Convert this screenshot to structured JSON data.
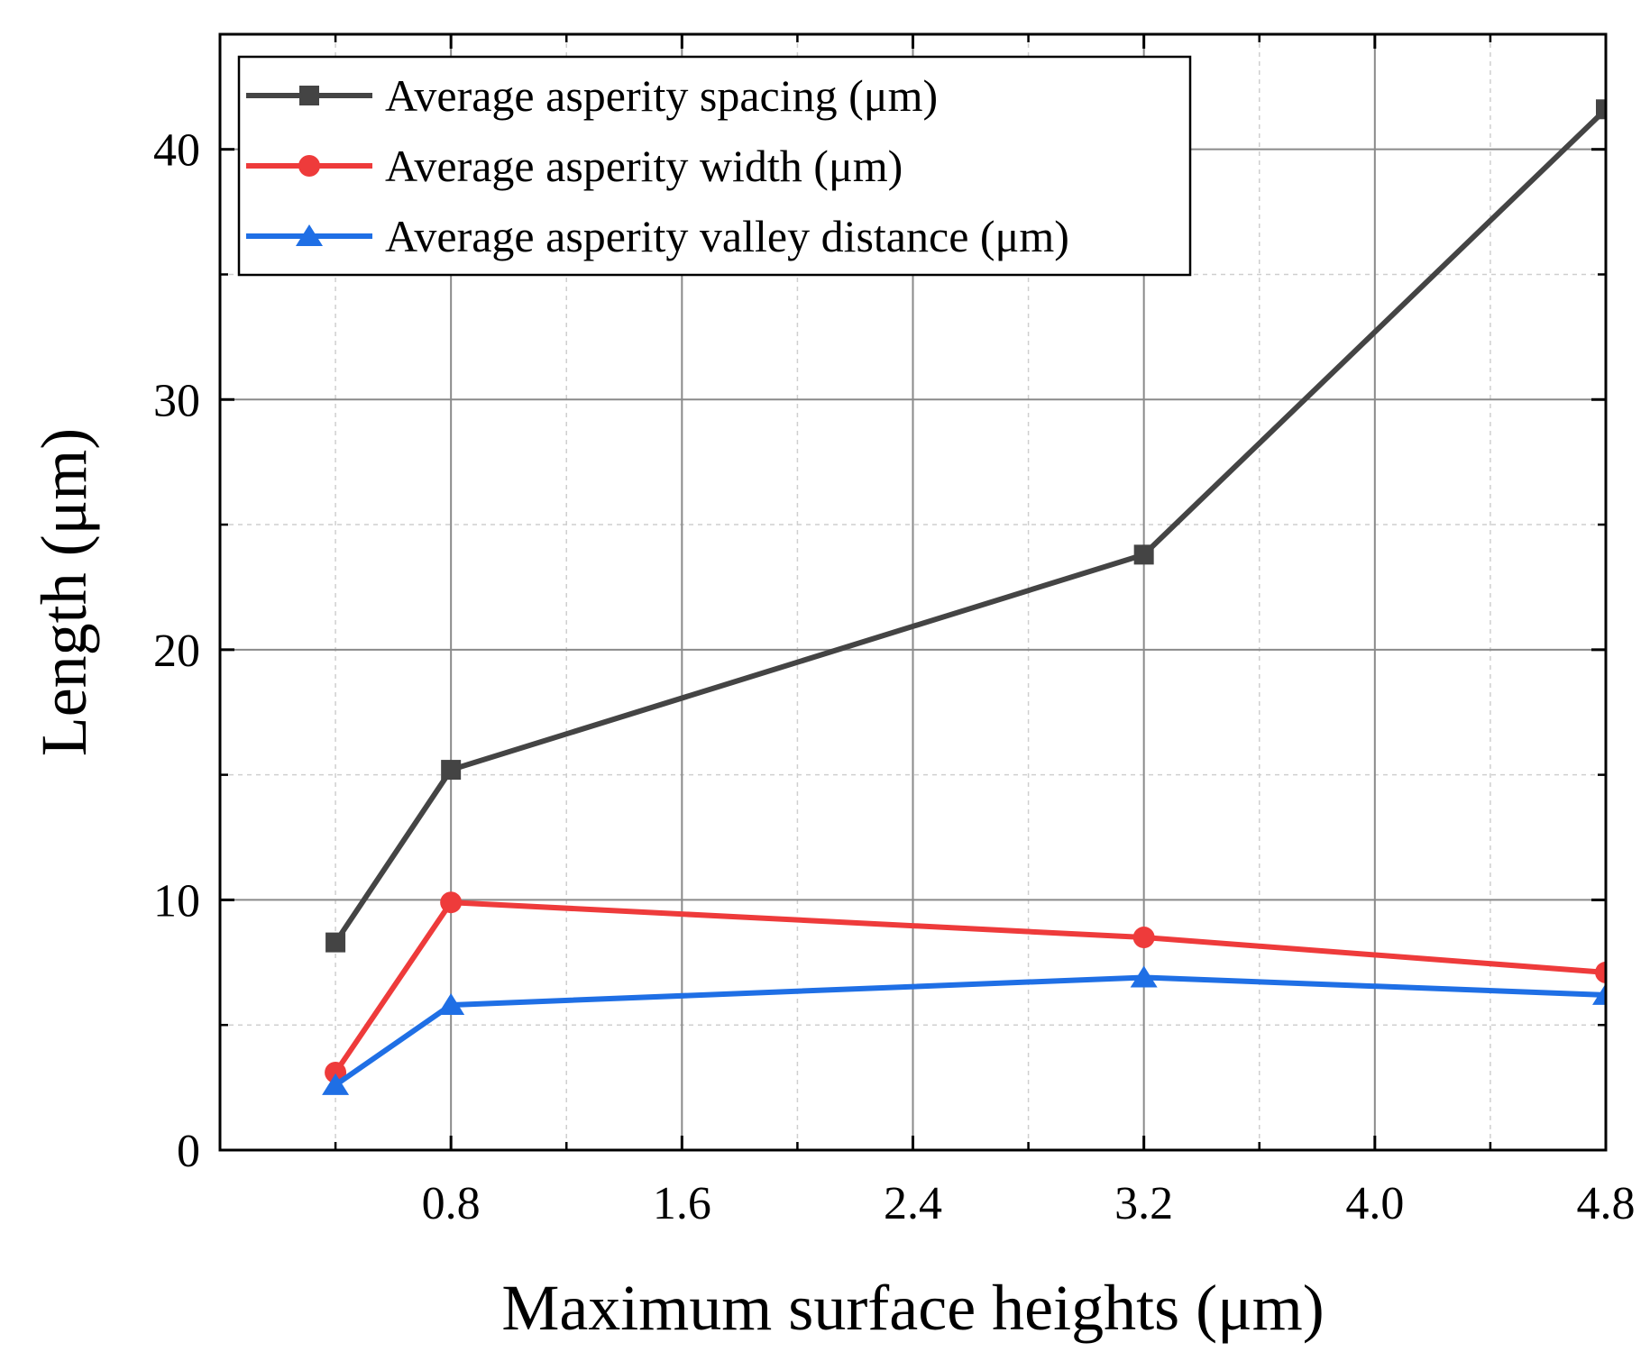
{
  "chart_data": {
    "type": "line",
    "title": "",
    "xlabel": "Maximum surface heights (μm)",
    "ylabel": "Length (μm)",
    "xlim": [
      0,
      4.8
    ],
    "ylim": [
      0,
      44.6
    ],
    "xticks": [
      0.8,
      1.6,
      2.4,
      3.2,
      4.0,
      4.8
    ],
    "xtick_labels": [
      "0.8",
      "1.6",
      "2.4",
      "3.2",
      "4.0",
      "4.8"
    ],
    "xminor": [
      0.4,
      1.2,
      2.0,
      2.8,
      3.6,
      4.4
    ],
    "yticks": [
      0,
      10,
      20,
      30,
      40
    ],
    "ytick_labels": [
      "0",
      "10",
      "20",
      "30",
      "40"
    ],
    "yminor": [
      5,
      15,
      25,
      35
    ],
    "grid": true,
    "legend_position": "top-left",
    "x": [
      0.4,
      0.8,
      3.2,
      4.8
    ],
    "series": [
      {
        "name": "Average asperity spacing (μm)",
        "marker": "square",
        "color": "#444444",
        "values": [
          8.3,
          15.2,
          23.8,
          41.6
        ]
      },
      {
        "name": "Average asperity width (μm)",
        "marker": "circle",
        "color": "#EE3B3B",
        "values": [
          3.1,
          9.9,
          8.5,
          7.1
        ]
      },
      {
        "name": "Average asperity valley distance (μm)",
        "marker": "triangle",
        "color": "#1F6FE5",
        "values": [
          2.6,
          5.8,
          6.9,
          6.2
        ]
      }
    ]
  }
}
